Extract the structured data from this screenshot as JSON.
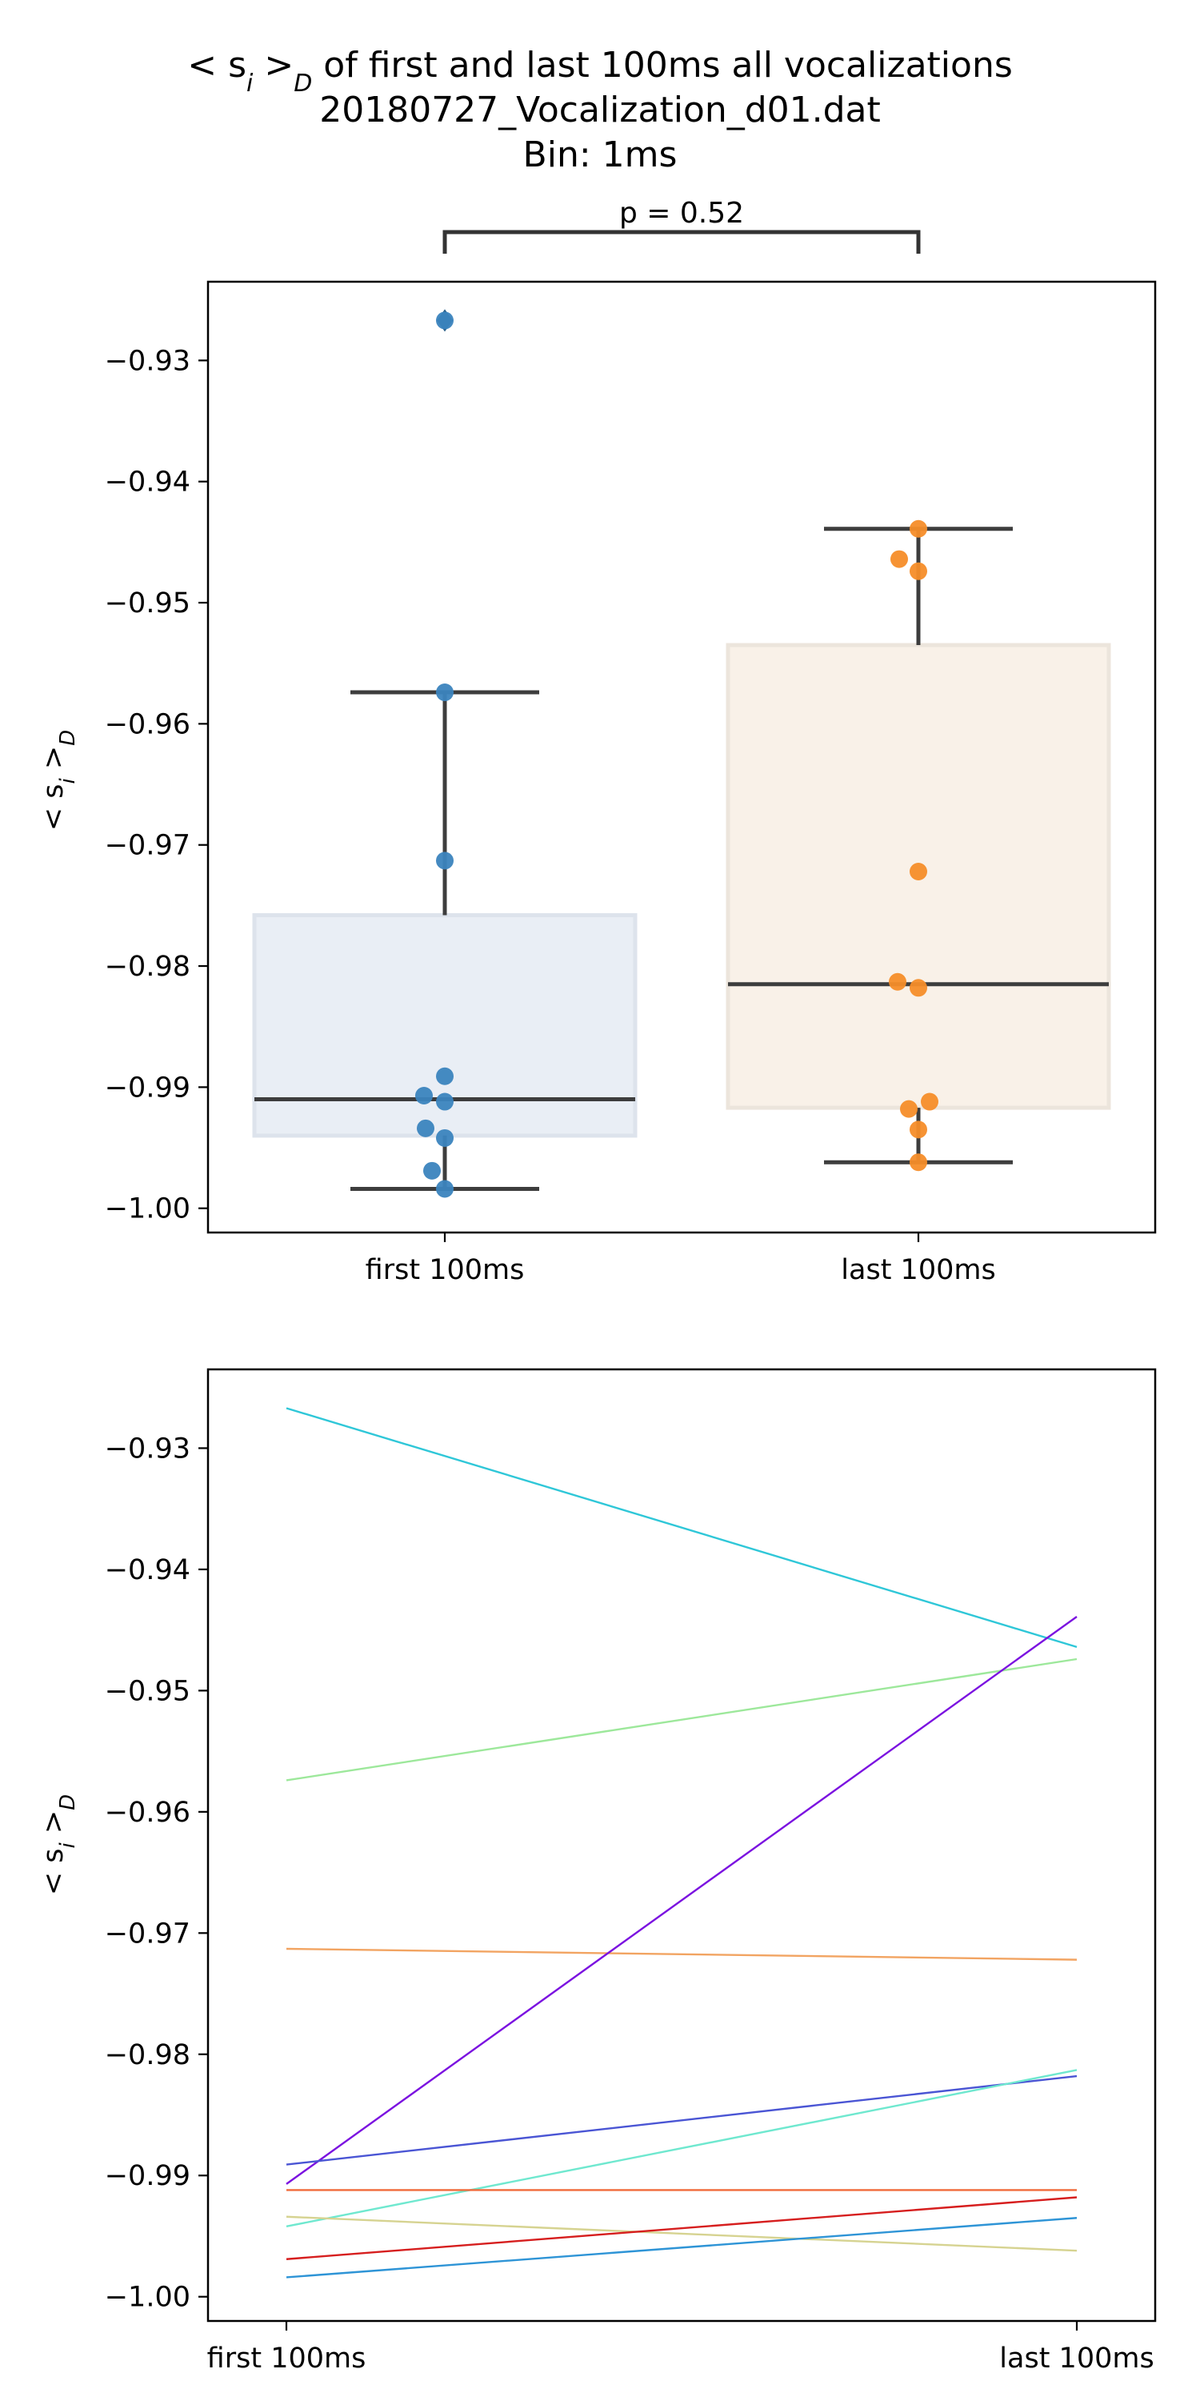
{
  "title": {
    "line1_prefix": "< s",
    "line1_sub_i": "i",
    "line1_mid": " >",
    "line1_sub_d": "D",
    "line1_suffix": " of first and last 100ms all vocalizations",
    "line2": "20180727_Vocalization_d01.dat",
    "line3": "Bin: 1ms"
  },
  "significance": {
    "label": "p = 0.52"
  },
  "ylabel": {
    "main": "< s",
    "sub_i": "i",
    "mid": " >",
    "sub_d": "D"
  },
  "chart_data": [
    {
      "type": "box",
      "categories": [
        "first 100ms",
        "last 100ms"
      ],
      "yticks": [
        "−0.93",
        "−0.94",
        "−0.95",
        "−0.96",
        "−0.97",
        "−0.98",
        "−0.99",
        "−1.00"
      ],
      "ytick_values": [
        -0.93,
        -0.94,
        -0.95,
        -0.96,
        -0.97,
        -0.98,
        -0.99,
        -1.0
      ],
      "ylim": [
        -1.002,
        -0.9235
      ],
      "boxes": [
        {
          "category": "first 100ms",
          "q1": -0.994,
          "median": -0.991,
          "q3": -0.9758,
          "whisker_low": -0.9984,
          "whisker_high": -0.9574,
          "outliers": [
            -0.9267
          ],
          "fill": "#e9eef5",
          "stroke": "#dde3ec"
        },
        {
          "category": "last 100ms",
          "q1": -0.9917,
          "median": -0.9815,
          "q3": -0.9535,
          "whisker_low": -0.9962,
          "whisker_high": -0.9439,
          "outliers": [],
          "fill": "#f9f1e8",
          "stroke": "#ece5dc"
        }
      ],
      "points": [
        {
          "category": "first 100ms",
          "color": "#3b84be",
          "values": [
            -0.9267,
            -0.9574,
            -0.9713,
            -0.9891,
            -0.9907,
            -0.9912,
            -0.9934,
            -0.9942,
            -0.9969,
            -0.9984
          ]
        },
        {
          "category": "last 100ms",
          "color": "#f58d29",
          "values": [
            -0.9439,
            -0.9464,
            -0.9474,
            -0.9722,
            -0.9813,
            -0.9818,
            -0.9912,
            -0.9918,
            -0.9935,
            -0.9962
          ]
        }
      ],
      "outlier_color": "#2a5f88",
      "line_color": "#3d3d3d"
    },
    {
      "type": "line",
      "categories": [
        "first 100ms",
        "last 100ms"
      ],
      "yticks": [
        "−0.93",
        "−0.94",
        "−0.95",
        "−0.96",
        "−0.97",
        "−0.98",
        "−0.99",
        "−1.00"
      ],
      "ytick_values": [
        -0.93,
        -0.94,
        -0.95,
        -0.96,
        -0.97,
        -0.98,
        -0.99,
        -1.0
      ],
      "ylim": [
        -1.002,
        -0.9235
      ],
      "series": [
        {
          "color": "#2fc7d8",
          "values": [
            -0.9267,
            -0.9464
          ]
        },
        {
          "color": "#9de89b",
          "values": [
            -0.9574,
            -0.9474
          ]
        },
        {
          "color": "#f2a462",
          "values": [
            -0.9713,
            -0.9722
          ]
        },
        {
          "color": "#7b12e0",
          "values": [
            -0.9907,
            -0.9439
          ]
        },
        {
          "color": "#4a55d4",
          "values": [
            -0.9891,
            -0.9818
          ]
        },
        {
          "color": "#6fe8cf",
          "values": [
            -0.9942,
            -0.9813
          ]
        },
        {
          "color": "#f06a3a",
          "values": [
            -0.9912,
            -0.9912
          ]
        },
        {
          "color": "#d6d391",
          "values": [
            -0.9934,
            -0.9962
          ]
        },
        {
          "color": "#d61e1e",
          "values": [
            -0.9969,
            -0.9918
          ]
        },
        {
          "color": "#2e94d6",
          "values": [
            -0.9984,
            -0.9935
          ]
        }
      ]
    }
  ]
}
